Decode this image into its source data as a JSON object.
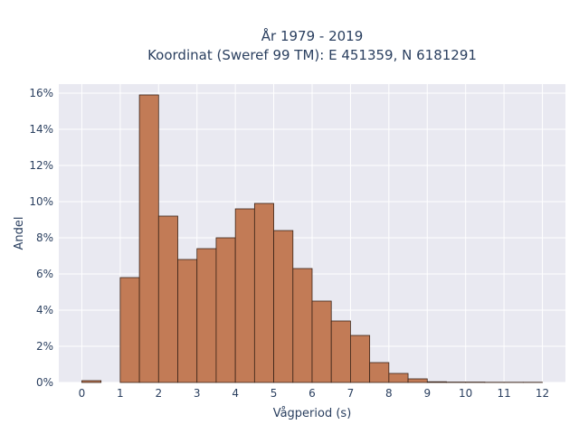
{
  "chart_data": {
    "type": "bar",
    "title": "År 1979 - 2019",
    "subtitle": "Koordinat (Sweref 99 TM): E 451359, N 6181291",
    "xlabel": "Vågperiod (s)",
    "ylabel": "Andel",
    "xlim": [
      -0.6,
      12.6
    ],
    "ylim": [
      0,
      0.165
    ],
    "x_ticks": [
      0,
      1,
      2,
      3,
      4,
      5,
      6,
      7,
      8,
      9,
      10,
      11,
      12
    ],
    "y_ticks": [
      0,
      0.02,
      0.04,
      0.06,
      0.08,
      0.1,
      0.12,
      0.14,
      0.16
    ],
    "y_tick_labels": [
      "0%",
      "2%",
      "4%",
      "6%",
      "8%",
      "10%",
      "12%",
      "14%",
      "16%"
    ],
    "bin_width": 0.5,
    "bins": [
      {
        "x0": 0.0,
        "value": 0.001
      },
      {
        "x0": 1.0,
        "value": 0.058
      },
      {
        "x0": 1.5,
        "value": 0.159
      },
      {
        "x0": 2.0,
        "value": 0.092
      },
      {
        "x0": 2.5,
        "value": 0.068
      },
      {
        "x0": 3.0,
        "value": 0.074
      },
      {
        "x0": 3.5,
        "value": 0.08
      },
      {
        "x0": 4.0,
        "value": 0.096
      },
      {
        "x0": 4.5,
        "value": 0.099
      },
      {
        "x0": 5.0,
        "value": 0.084
      },
      {
        "x0": 5.5,
        "value": 0.063
      },
      {
        "x0": 6.0,
        "value": 0.045
      },
      {
        "x0": 6.5,
        "value": 0.034
      },
      {
        "x0": 7.0,
        "value": 0.026
      },
      {
        "x0": 7.5,
        "value": 0.011
      },
      {
        "x0": 8.0,
        "value": 0.005
      },
      {
        "x0": 8.5,
        "value": 0.002
      },
      {
        "x0": 9.0,
        "value": 0.0004
      },
      {
        "x0": 9.5,
        "value": 0.0002
      },
      {
        "x0": 10.0,
        "value": 0.0002
      },
      {
        "x0": 10.5,
        "value": 0.0001
      },
      {
        "x0": 11.0,
        "value": 0.0001
      },
      {
        "x0": 11.5,
        "value": 0.0001
      }
    ],
    "grid": true,
    "colors": {
      "bar_fill": "#c27b56",
      "bar_stroke": "#3b2418",
      "plot_bg": "#e9e9f1",
      "grid": "#ffffff"
    }
  }
}
